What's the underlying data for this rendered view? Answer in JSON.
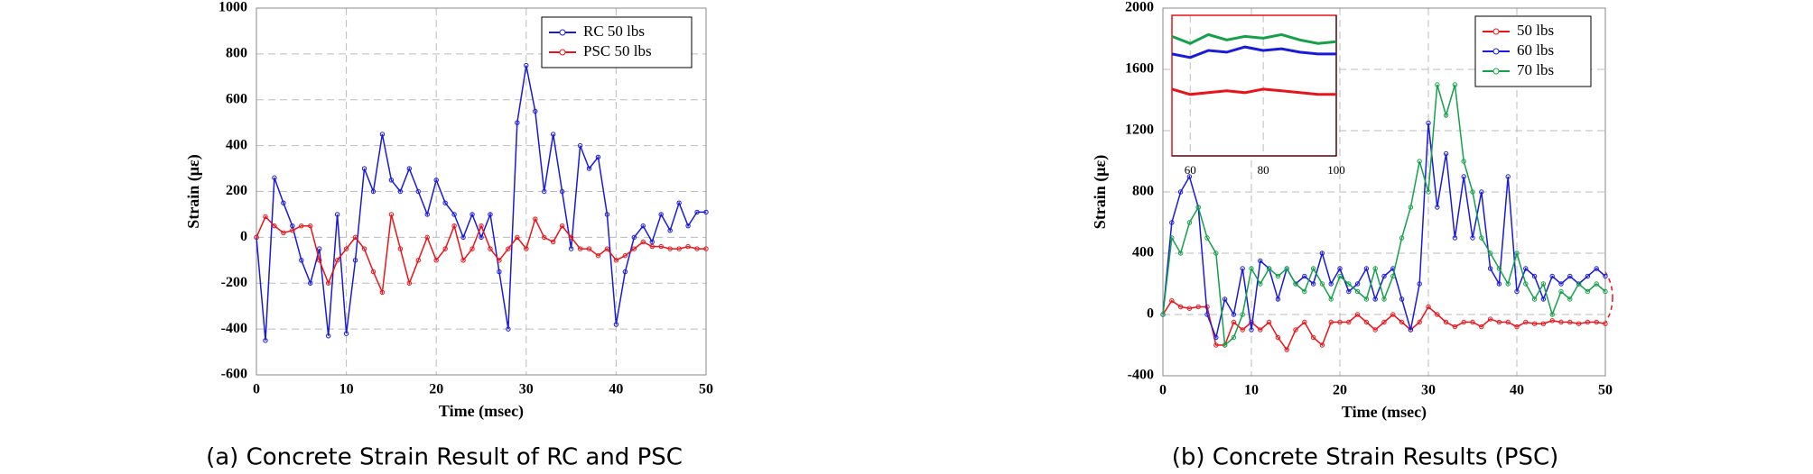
{
  "chart_data": [
    {
      "type": "line",
      "caption": "(a) Concrete Strain Result of RC and PSC",
      "xlabel": "Time (msec)",
      "ylabel": "Strain (με)",
      "xlim": [
        0,
        50
      ],
      "xticks": [
        0,
        10,
        20,
        30,
        40,
        50
      ],
      "ylim": [
        -600,
        1000
      ],
      "yticks": [
        -600,
        -400,
        -200,
        0,
        200,
        400,
        600,
        800,
        1000
      ],
      "grid": true,
      "legend": "upper right",
      "x": [
        0,
        1,
        2,
        3,
        4,
        5,
        6,
        7,
        8,
        9,
        10,
        11,
        12,
        13,
        14,
        15,
        16,
        17,
        18,
        19,
        20,
        21,
        22,
        23,
        24,
        25,
        26,
        27,
        28,
        29,
        30,
        31,
        32,
        33,
        34,
        35,
        36,
        37,
        38,
        39,
        40,
        41,
        42,
        43,
        44,
        45,
        46,
        47,
        48,
        49,
        50
      ],
      "series": [
        {
          "name": "RC 50 lbs",
          "color": "#1a1adb",
          "values": [
            0,
            -450,
            260,
            150,
            50,
            -100,
            -200,
            -50,
            -430,
            100,
            -420,
            -100,
            300,
            200,
            450,
            250,
            200,
            300,
            200,
            100,
            250,
            150,
            100,
            0,
            100,
            0,
            100,
            -150,
            -400,
            500,
            750,
            550,
            200,
            450,
            200,
            -50,
            400,
            300,
            350,
            100,
            -380,
            -150,
            0,
            50,
            -20,
            100,
            30,
            150,
            50,
            110,
            110
          ]
        },
        {
          "name": "PSC 50 lbs",
          "color": "#e8141a",
          "values": [
            0,
            90,
            50,
            20,
            30,
            50,
            50,
            -100,
            -200,
            -100,
            -50,
            0,
            -50,
            -150,
            -240,
            100,
            -50,
            -200,
            -100,
            0,
            -100,
            -50,
            50,
            -100,
            -50,
            50,
            -50,
            -100,
            -50,
            0,
            -50,
            80,
            0,
            -20,
            50,
            0,
            -50,
            -50,
            -80,
            -50,
            -100,
            -80,
            -50,
            -20,
            -40,
            -40,
            -50,
            -50,
            -40,
            -50,
            -50
          ]
        }
      ]
    },
    {
      "type": "line",
      "caption": "(b) Concrete Strain Results (PSC)",
      "xlabel": "Time (msec)",
      "ylabel": "Strain (με)",
      "xlim": [
        0,
        50
      ],
      "xticks": [
        0,
        10,
        20,
        30,
        40,
        50
      ],
      "ylim": [
        -400,
        2000
      ],
      "yticks": [
        -400,
        0,
        400,
        800,
        1200,
        1600,
        2000
      ],
      "grid": true,
      "legend": "upper right",
      "x": [
        0,
        1,
        2,
        3,
        4,
        5,
        6,
        7,
        8,
        9,
        10,
        11,
        12,
        13,
        14,
        15,
        16,
        17,
        18,
        19,
        20,
        21,
        22,
        23,
        24,
        25,
        26,
        27,
        28,
        29,
        30,
        31,
        32,
        33,
        34,
        35,
        36,
        37,
        38,
        39,
        40,
        41,
        42,
        43,
        44,
        45,
        46,
        47,
        48,
        49,
        50
      ],
      "series": [
        {
          "name": "50 lbs",
          "color": "#e8141a",
          "values": [
            0,
            90,
            50,
            40,
            50,
            50,
            -200,
            -200,
            -50,
            -100,
            -50,
            -100,
            -50,
            -150,
            -230,
            -100,
            -50,
            -150,
            -200,
            -50,
            -50,
            -50,
            0,
            -50,
            -100,
            -50,
            0,
            -50,
            -100,
            -50,
            50,
            0,
            -50,
            -80,
            -50,
            -50,
            -80,
            -30,
            -50,
            -50,
            -80,
            -50,
            -60,
            -60,
            -40,
            -50,
            -50,
            -60,
            -50,
            -50,
            -60
          ]
        },
        {
          "name": "60 lbs",
          "color": "#1a1adb",
          "values": [
            0,
            600,
            800,
            900,
            700,
            0,
            -150,
            100,
            0,
            300,
            -100,
            350,
            300,
            100,
            300,
            200,
            250,
            200,
            400,
            200,
            300,
            150,
            200,
            300,
            100,
            250,
            300,
            100,
            -100,
            200,
            1250,
            700,
            1050,
            500,
            900,
            500,
            800,
            300,
            200,
            900,
            150,
            300,
            250,
            100,
            250,
            200,
            250,
            200,
            250,
            300,
            250
          ]
        },
        {
          "name": "70 lbs",
          "color": "#15a04a",
          "values": [
            0,
            500,
            400,
            600,
            700,
            500,
            400,
            -200,
            -150,
            0,
            300,
            200,
            300,
            250,
            300,
            200,
            150,
            300,
            200,
            100,
            250,
            200,
            150,
            100,
            300,
            100,
            250,
            500,
            700,
            1000,
            800,
            1500,
            1300,
            1500,
            1000,
            800,
            500,
            400,
            300,
            200,
            400,
            200,
            100,
            200,
            0,
            150,
            100,
            200,
            150,
            200,
            150
          ]
        }
      ]
    },
    {
      "type": "line",
      "xlim": [
        55,
        100
      ],
      "xticks": [
        60,
        80,
        100
      ],
      "ylim": [
        0,
        400
      ],
      "grid": true,
      "x": [
        55,
        60,
        65,
        70,
        75,
        80,
        85,
        90,
        95,
        100
      ],
      "series": [
        {
          "color": "#e8141a",
          "values": [
            190,
            175,
            180,
            185,
            180,
            190,
            185,
            180,
            175,
            175
          ]
        },
        {
          "color": "#1a1adb",
          "values": [
            290,
            280,
            300,
            295,
            310,
            300,
            305,
            295,
            290,
            290
          ]
        },
        {
          "color": "#15a04a",
          "values": [
            340,
            320,
            345,
            330,
            340,
            335,
            345,
            330,
            320,
            325
          ]
        }
      ]
    }
  ]
}
